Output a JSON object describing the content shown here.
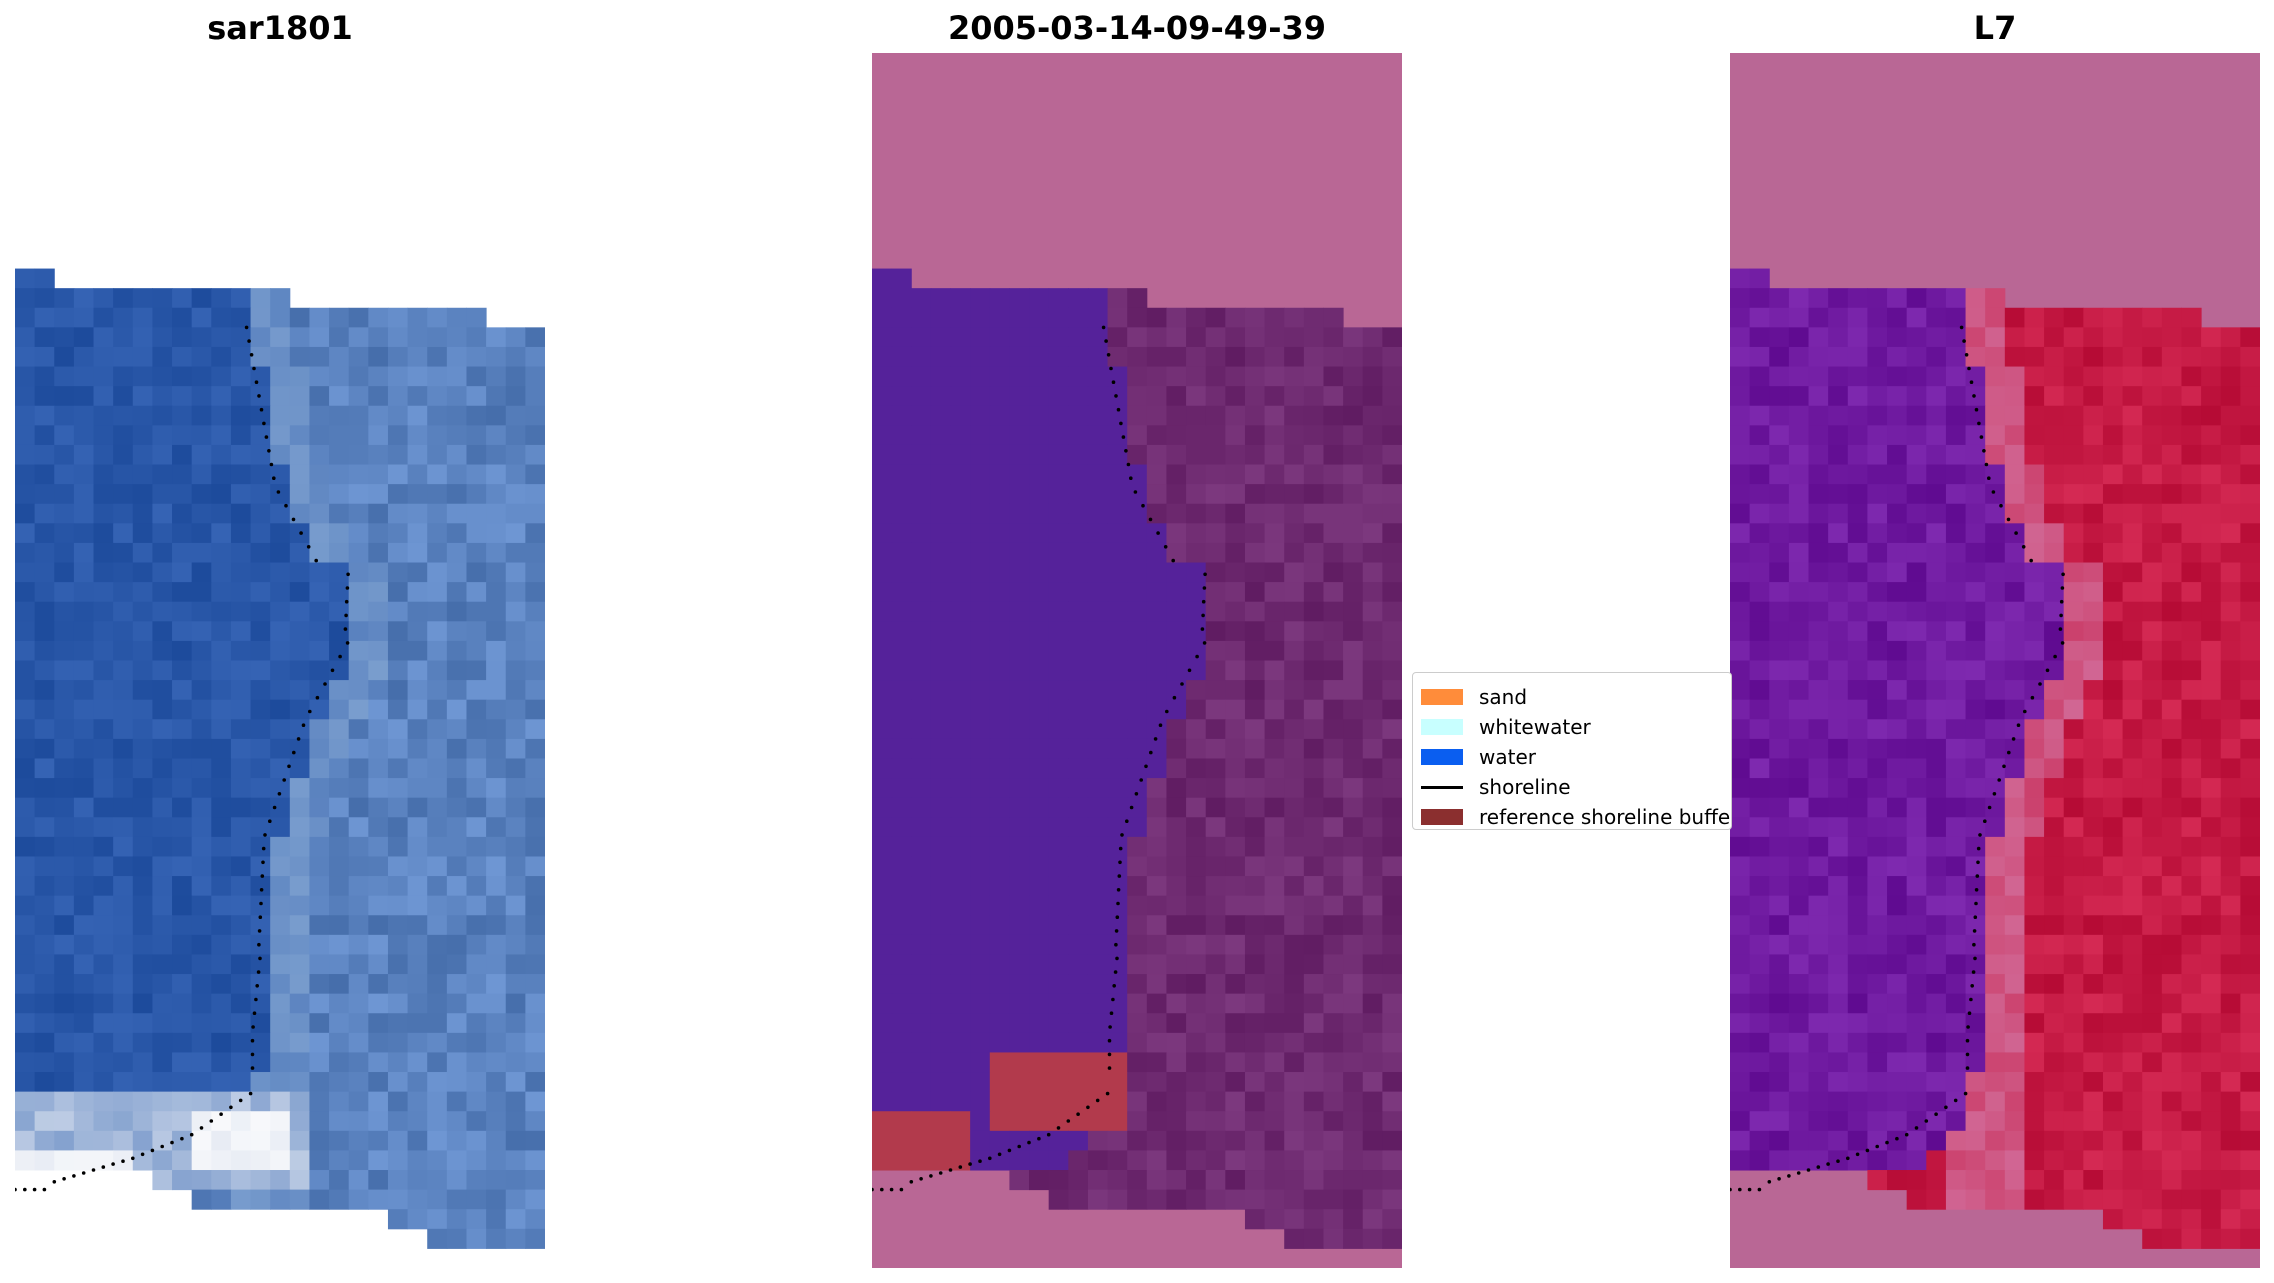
{
  "panels": [
    {
      "title": "sar1801"
    },
    {
      "title": "2005-03-14-09-49-39"
    },
    {
      "title": "L7"
    }
  ],
  "legend": {
    "items": [
      {
        "label": "sand",
        "color": "#ff8c3a",
        "kind": "patch"
      },
      {
        "label": "whitewater",
        "color": "#c8ffff",
        "kind": "patch"
      },
      {
        "label": "water",
        "color": "#0a5ef0",
        "kind": "patch"
      },
      {
        "label": "shoreline",
        "color": "#000000",
        "kind": "line"
      },
      {
        "label": "reference shoreline buffer",
        "color": "#8b2f2f",
        "kind": "patch"
      }
    ]
  },
  "colors": {
    "rgb_water": "#2957a8",
    "rgb_land": "#5a82bf",
    "rgb_wave": "#e8ecf4",
    "class_background": "#b96795",
    "class_water": "#55229a",
    "class_land": "#6e2a70",
    "class_buffer": "#b23a4c",
    "index_background": "#b96795",
    "index_water": "#6f1aa0",
    "index_land": "#c51a44",
    "shoreline": "#000000"
  }
}
